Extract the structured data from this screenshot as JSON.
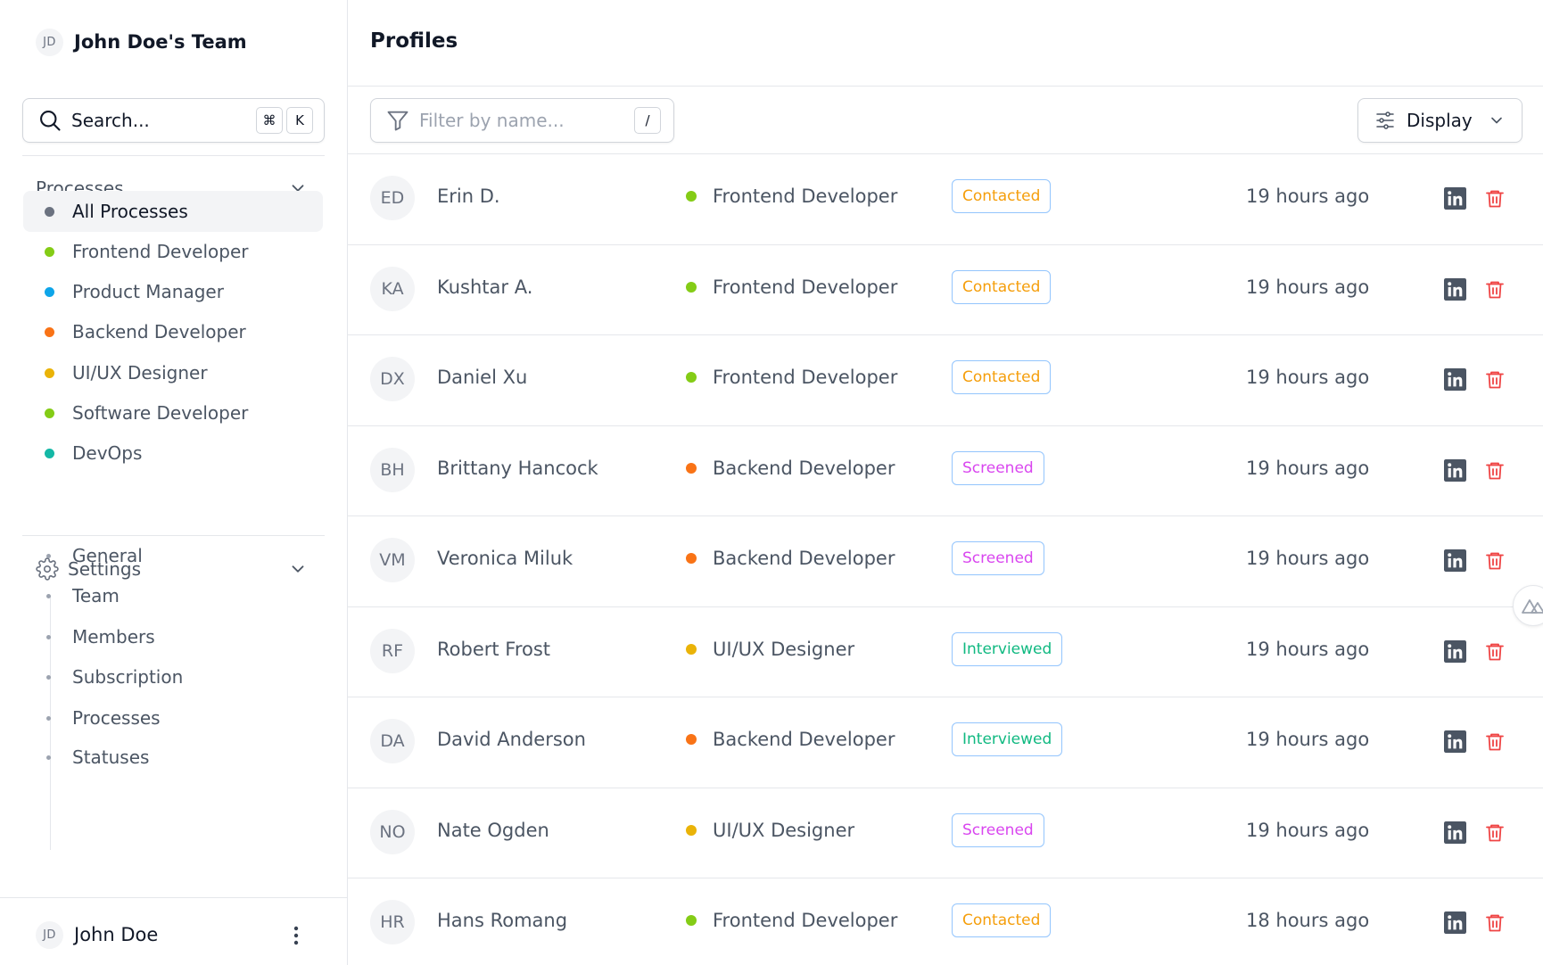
{
  "team": {
    "initials": "JD",
    "name": "John Doe's Team"
  },
  "search": {
    "placeholder": "Search...",
    "shortcut_mod": "⌘",
    "shortcut_key": "K"
  },
  "processes": {
    "title": "Processes",
    "items": [
      {
        "label": "All Processes",
        "color": "#6b7280",
        "active": true
      },
      {
        "label": "Frontend Developer",
        "color": "#84cc16"
      },
      {
        "label": "Product Manager",
        "color": "#0ea5e9"
      },
      {
        "label": "Backend Developer",
        "color": "#f97316"
      },
      {
        "label": "UI/UX Designer",
        "color": "#eab308"
      },
      {
        "label": "Software Developer",
        "color": "#84cc16"
      },
      {
        "label": "DevOps",
        "color": "#14b8a6"
      }
    ]
  },
  "settings": {
    "title": "Settings",
    "items": [
      "General",
      "Team",
      "Members",
      "Subscription",
      "Processes",
      "Statuses"
    ]
  },
  "user": {
    "initials": "JD",
    "name": "John Doe"
  },
  "page": {
    "title": "Profiles"
  },
  "filter": {
    "placeholder": "Filter by name...",
    "shortcut": "/"
  },
  "display": {
    "label": "Display"
  },
  "status_colors": {
    "Contacted": "#f59e0b",
    "Screened": "#d946ef",
    "Interviewed": "#10b981"
  },
  "profiles": [
    {
      "initials": "ED",
      "name": "Erin D.",
      "process": "Frontend Developer",
      "process_color": "#84cc16",
      "status": "Contacted",
      "time": "19 hours ago"
    },
    {
      "initials": "KA",
      "name": "Kushtar A.",
      "process": "Frontend Developer",
      "process_color": "#84cc16",
      "status": "Contacted",
      "time": "19 hours ago"
    },
    {
      "initials": "DX",
      "name": "Daniel Xu",
      "process": "Frontend Developer",
      "process_color": "#84cc16",
      "status": "Contacted",
      "time": "19 hours ago"
    },
    {
      "initials": "BH",
      "name": "Brittany Hancock",
      "process": "Backend Developer",
      "process_color": "#f97316",
      "status": "Screened",
      "time": "19 hours ago"
    },
    {
      "initials": "VM",
      "name": "Veronica Miluk",
      "process": "Backend Developer",
      "process_color": "#f97316",
      "status": "Screened",
      "time": "19 hours ago"
    },
    {
      "initials": "RF",
      "name": "Robert Frost",
      "process": "UI/UX Designer",
      "process_color": "#eab308",
      "status": "Interviewed",
      "time": "19 hours ago"
    },
    {
      "initials": "DA",
      "name": "David Anderson",
      "process": "Backend Developer",
      "process_color": "#f97316",
      "status": "Interviewed",
      "time": "19 hours ago"
    },
    {
      "initials": "NO",
      "name": "Nate Ogden",
      "process": "UI/UX Designer",
      "process_color": "#eab308",
      "status": "Screened",
      "time": "19 hours ago"
    },
    {
      "initials": "HR",
      "name": "Hans Romang",
      "process": "Frontend Developer",
      "process_color": "#84cc16",
      "status": "Contacted",
      "time": "18 hours ago"
    }
  ]
}
